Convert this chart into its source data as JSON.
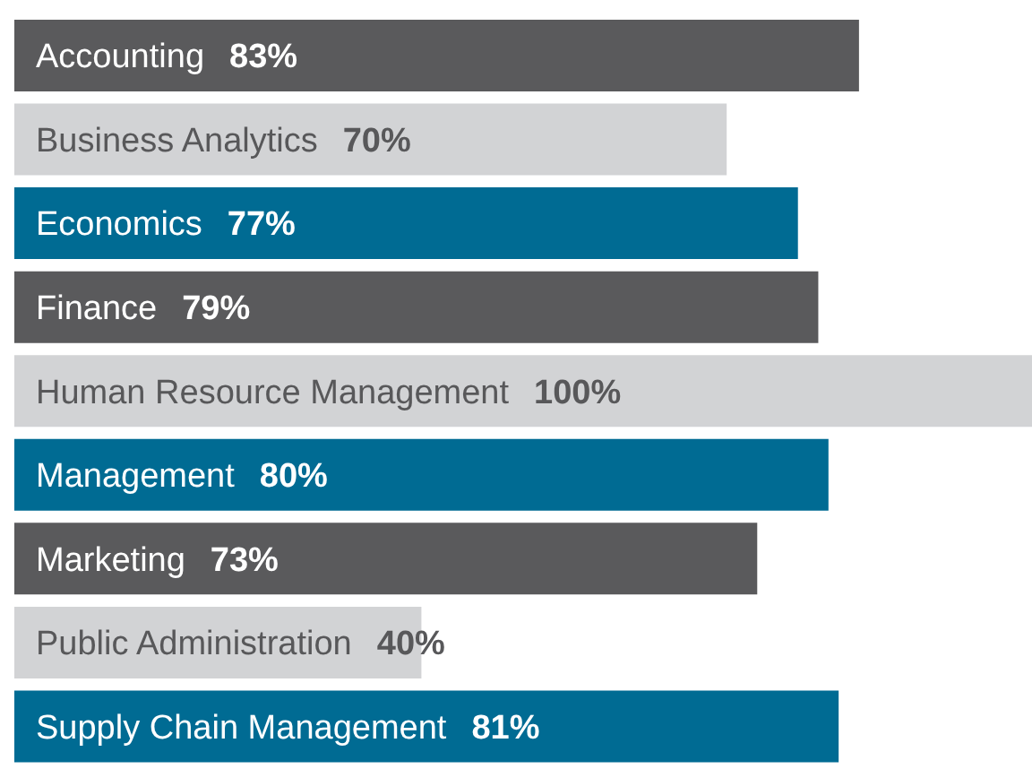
{
  "chart_data": {
    "type": "bar",
    "orientation": "horizontal",
    "categories": [
      "Accounting",
      "Business Analytics",
      "Economics",
      "Finance",
      "Human Resource Management",
      "Management",
      "Marketing",
      "Public Administration",
      "Supply Chain Management"
    ],
    "values": [
      83,
      70,
      77,
      79,
      100,
      80,
      73,
      40,
      81
    ],
    "value_labels": [
      "83%",
      "70%",
      "77%",
      "79%",
      "100%",
      "80%",
      "73%",
      "40%",
      "81%"
    ],
    "colors": [
      "#5a5a5c",
      "#d2d3d5",
      "#006b93",
      "#5a5a5c",
      "#d2d3d5",
      "#006b93",
      "#5a5a5c",
      "#d2d3d5",
      "#006b93"
    ]
  }
}
